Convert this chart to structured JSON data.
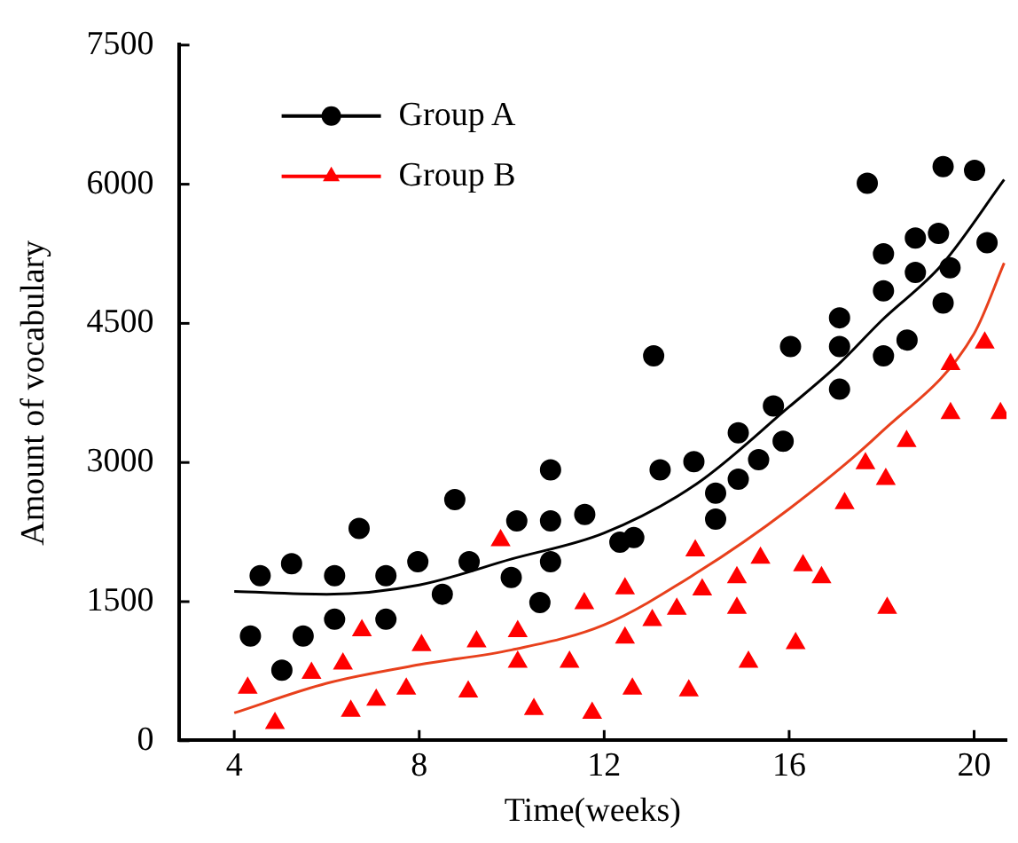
{
  "chart_data": {
    "type": "scatter",
    "xlabel": "Time(weeks)",
    "ylabel": "Amount of vocabulary",
    "xlim": [
      2.8,
      20.7
    ],
    "xticks": [
      4,
      8,
      12,
      16,
      20
    ],
    "ylim": [
      0,
      7500
    ],
    "yticks": [
      0,
      1500,
      3000,
      4500,
      6000,
      7500
    ],
    "grid": false,
    "legend": "top left",
    "series": [
      {
        "name": "Group A",
        "marker": "circle",
        "color": "#000000",
        "x": [
          4.35,
          4.56,
          5.03,
          5.24,
          5.49,
          6.17,
          6.17,
          6.7,
          7.28,
          7.28,
          7.97,
          8.5,
          8.77,
          9.08,
          9.99,
          10.11,
          10.61,
          10.84,
          10.84,
          10.84,
          11.58,
          12.34,
          12.64,
          13.07,
          13.21,
          13.94,
          14.41,
          14.41,
          14.9,
          14.9,
          15.34,
          15.66,
          15.87,
          16.03,
          17.09,
          17.09,
          17.09,
          17.69,
          18.04,
          18.04,
          18.04,
          18.55,
          18.73,
          18.73,
          19.23,
          19.33,
          19.33,
          19.48,
          20.01,
          20.28
        ],
        "values": [
          1130,
          1780,
          760,
          1910,
          1130,
          1780,
          1310,
          2290,
          1780,
          1310,
          1930,
          1580,
          2600,
          1930,
          1760,
          2370,
          1490,
          2920,
          2370,
          1930,
          2440,
          2140,
          2190,
          4150,
          2920,
          3010,
          2670,
          2390,
          3320,
          2820,
          3030,
          3610,
          3230,
          4250,
          4560,
          4250,
          3790,
          6010,
          5250,
          4850,
          4150,
          4320,
          5420,
          5050,
          5470,
          6190,
          4720,
          5100,
          6150,
          5370
        ]
      },
      {
        "name": "Group B",
        "marker": "triangle",
        "color": "#ff0000",
        "x": [
          4.29,
          4.88,
          5.67,
          6.35,
          6.52,
          6.76,
          7.07,
          7.72,
          8.05,
          9.06,
          9.24,
          9.76,
          10.13,
          10.13,
          10.48,
          11.25,
          11.57,
          11.74,
          12.45,
          12.45,
          12.61,
          13.04,
          13.57,
          13.83,
          13.97,
          14.12,
          14.87,
          14.87,
          15.12,
          15.38,
          16.14,
          16.3,
          16.7,
          17.2,
          17.65,
          18.09,
          18.12,
          18.54,
          19.49,
          19.49,
          20.23,
          20.57
        ],
        "values": [
          570,
          190,
          730,
          830,
          320,
          1190,
          440,
          560,
          1030,
          530,
          1070,
          2160,
          1180,
          850,
          340,
          850,
          1480,
          300,
          1640,
          1110,
          560,
          1300,
          1420,
          540,
          2050,
          1630,
          1760,
          1430,
          850,
          1970,
          1050,
          1890,
          1760,
          2560,
          2990,
          2820,
          1430,
          3230,
          3530,
          4060,
          4290,
          3530
        ]
      },
      {
        "type": "line",
        "marker": "none",
        "color": "#000000",
        "x": [
          4,
          6,
          8,
          10,
          12,
          14,
          16,
          17.07,
          18,
          19.3,
          20.65
        ],
        "values": [
          1610,
          1580,
          1680,
          1960,
          2240,
          2770,
          3600,
          4060,
          4530,
          5130,
          6050
        ]
      },
      {
        "type": "line",
        "marker": "none",
        "color": "#e8401c",
        "x": [
          4,
          6,
          8,
          10,
          12,
          14,
          16,
          18,
          20,
          20.65
        ],
        "values": [
          300,
          620,
          820,
          980,
          1250,
          1810,
          2500,
          3330,
          4390,
          5150
        ]
      }
    ]
  }
}
